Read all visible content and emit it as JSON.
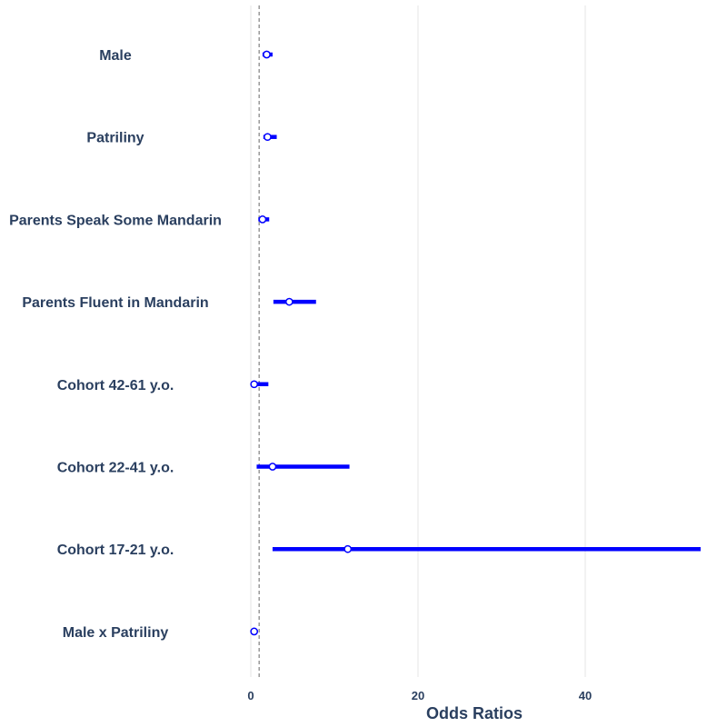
{
  "chart_data": {
    "type": "forest",
    "xlabel": "Odds Ratios",
    "ylabel": "",
    "title": "",
    "xlim": [
      -0.5,
      53.8
    ],
    "xticks": [
      0,
      20,
      40
    ],
    "tick_labels": [
      "0",
      "20",
      "40"
    ],
    "reference_line": 1,
    "grid": true,
    "colors": {
      "ci": "#0000ff",
      "marker_edge": "#0000ff",
      "marker_fill": "#ffffff",
      "reference": "#999999",
      "grid": "#e5e5e5",
      "text": "#2a3f5f"
    },
    "categories": [
      "Male",
      "Patriliny",
      "Parents Speak Some Mandarin",
      "Parents Fluent in Mandarin",
      "Cohort 42-61 y.o.",
      "Cohort 22-41 y.o.",
      "Cohort 17-21 y.o.",
      "Male x Patriliny"
    ],
    "estimates": [
      1.9,
      2.0,
      1.4,
      4.6,
      0.4,
      2.6,
      11.6,
      0.4
    ],
    "ci_low": [
      1.4,
      1.5,
      0.9,
      2.7,
      0.3,
      0.7,
      2.6,
      0.2
    ],
    "ci_high": [
      2.6,
      3.1,
      2.2,
      7.8,
      2.1,
      11.8,
      53.8,
      0.8
    ]
  }
}
